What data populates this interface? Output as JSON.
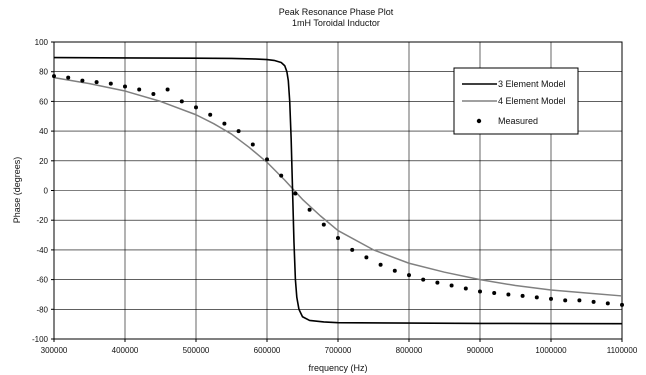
{
  "chart_data": {
    "type": "line",
    "title": "Peak Resonance Phase Plot",
    "subtitle": "1mH Toroidal Inductor",
    "xlabel": "frequency (Hz)",
    "ylabel": "Phase (degrees)",
    "xlim": [
      300000,
      1100000
    ],
    "ylim": [
      -100,
      100
    ],
    "x_ticks": [
      300000,
      400000,
      500000,
      600000,
      700000,
      800000,
      900000,
      1000000,
      1100000
    ],
    "y_ticks": [
      -100,
      -80,
      -60,
      -40,
      -20,
      0,
      20,
      40,
      60,
      80,
      100
    ],
    "grid": true,
    "legend_position": "top-right",
    "series": [
      {
        "name": "3 Element Model",
        "style": "line",
        "color": "#000000",
        "x": [
          300000,
          400000,
          500000,
          550000,
          580000,
          600000,
          610000,
          620000,
          625000,
          628000,
          630000,
          632000,
          634000,
          636000,
          638000,
          640000,
          642000,
          645000,
          650000,
          660000,
          680000,
          700000,
          800000,
          900000,
          1000000,
          1100000
        ],
        "y": [
          89.5,
          89.3,
          89.1,
          88.9,
          88.6,
          88.2,
          87.6,
          86.2,
          84.0,
          80.0,
          74.0,
          60.0,
          35.0,
          0.0,
          -35.0,
          -60.0,
          -72.0,
          -80.0,
          -85.0,
          -87.5,
          -88.5,
          -89.0,
          -89.3,
          -89.5,
          -89.6,
          -89.7
        ]
      },
      {
        "name": "4 Element Model",
        "style": "line",
        "color": "#808080",
        "x": [
          300000,
          350000,
          400000,
          450000,
          500000,
          525000,
          550000,
          575000,
          600000,
          625000,
          650000,
          675000,
          700000,
          750000,
          800000,
          850000,
          900000,
          950000,
          1000000,
          1050000,
          1100000
        ],
        "y": [
          76,
          72,
          67,
          60,
          51,
          45,
          38,
          29,
          19,
          7,
          -6,
          -17,
          -27,
          -40,
          -49,
          -55,
          -60,
          -64,
          -67,
          -69,
          -71
        ]
      },
      {
        "name": "Measured",
        "style": "markers",
        "color": "#000000",
        "x": [
          300000,
          320000,
          340000,
          360000,
          380000,
          400000,
          420000,
          440000,
          460000,
          480000,
          500000,
          520000,
          540000,
          560000,
          580000,
          600000,
          620000,
          640000,
          660000,
          680000,
          700000,
          720000,
          740000,
          760000,
          780000,
          800000,
          820000,
          840000,
          860000,
          880000,
          900000,
          920000,
          940000,
          960000,
          980000,
          1000000,
          1020000,
          1040000,
          1060000,
          1080000,
          1100000
        ],
        "y": [
          77,
          76,
          74,
          73,
          72,
          70,
          68,
          65,
          68,
          60,
          56,
          51,
          45,
          40,
          31,
          21,
          10,
          -2,
          -13,
          -23,
          -32,
          -40,
          -45,
          -50,
          -54,
          -57,
          -60,
          -62,
          -64,
          -66,
          -68,
          -69,
          -70,
          -71,
          -72,
          -73,
          -74,
          -74,
          -75,
          -76,
          -77
        ]
      }
    ]
  }
}
